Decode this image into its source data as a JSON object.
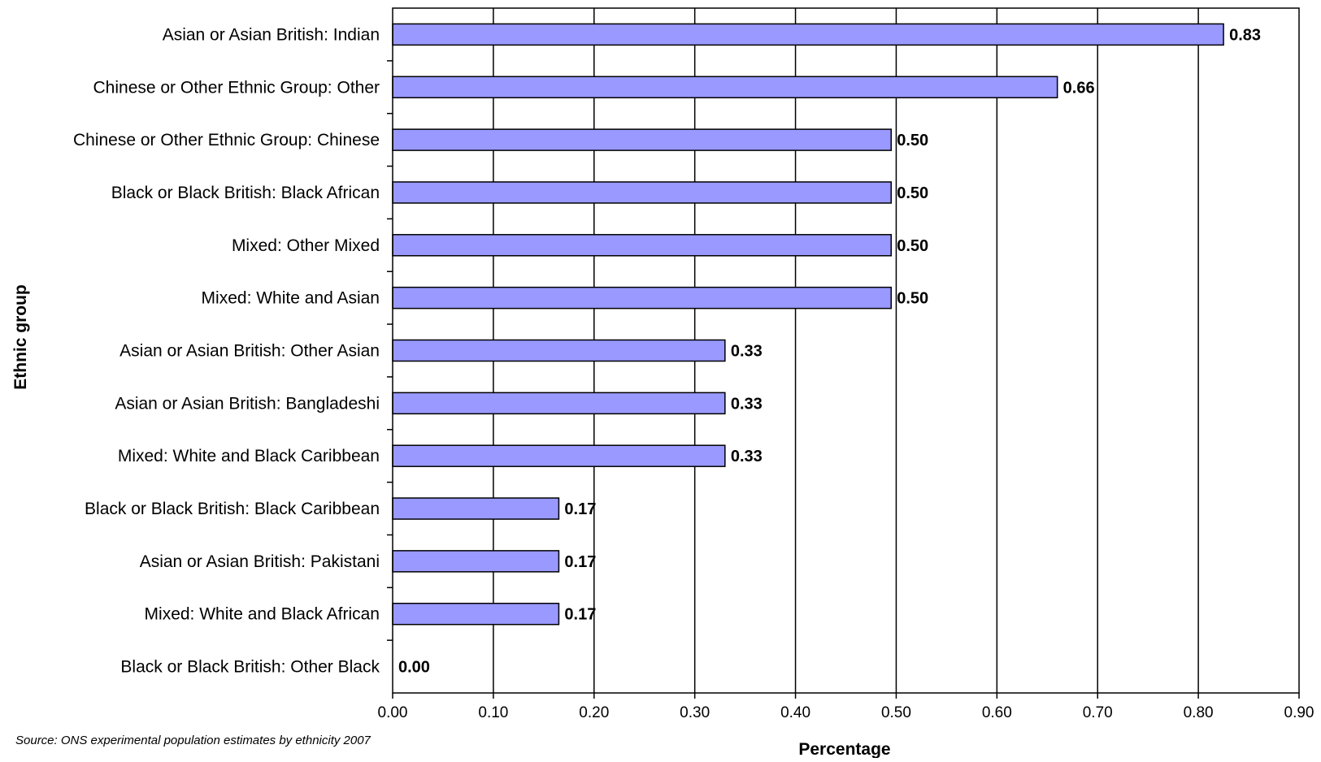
{
  "chart_data": {
    "type": "bar",
    "orientation": "horizontal",
    "categories": [
      "Asian or Asian British: Indian",
      "Chinese or Other Ethnic Group: Other",
      "Chinese or Other Ethnic Group: Chinese",
      "Black or Black British: Black African",
      "Mixed: Other Mixed",
      "Mixed: White and Asian",
      "Asian or Asian British: Other Asian",
      "Asian or Asian British: Bangladeshi",
      "Mixed: White and Black Caribbean",
      "Black or Black British: Black Caribbean",
      "Asian or Asian British: Pakistani",
      "Mixed: White and Black African",
      "Black or Black British: Other Black"
    ],
    "values": [
      0.825,
      0.66,
      0.495,
      0.495,
      0.495,
      0.495,
      0.33,
      0.33,
      0.33,
      0.165,
      0.165,
      0.165,
      0.0
    ],
    "value_labels": [
      "0.83",
      "0.66",
      "0.50",
      "0.50",
      "0.50",
      "0.50",
      "0.33",
      "0.33",
      "0.33",
      "0.17",
      "0.17",
      "0.17",
      "0.00"
    ],
    "xlabel": "Percentage",
    "ylabel": "Ethnic group",
    "xlim": [
      0,
      0.9
    ],
    "xticks": [
      0.0,
      0.1,
      0.2,
      0.3,
      0.4,
      0.5,
      0.6,
      0.7,
      0.8,
      0.9
    ],
    "xtick_labels": [
      "0.00",
      "0.10",
      "0.20",
      "0.30",
      "0.40",
      "0.50",
      "0.60",
      "0.70",
      "0.80",
      "0.90"
    ],
    "grid": "vertical",
    "legend": "none",
    "colors": {
      "bar_fill": "#9999ff",
      "bar_stroke": "#000000",
      "grid": "#000000"
    },
    "source": "Source: ONS experimental population estimates by ethnicity 2007"
  }
}
